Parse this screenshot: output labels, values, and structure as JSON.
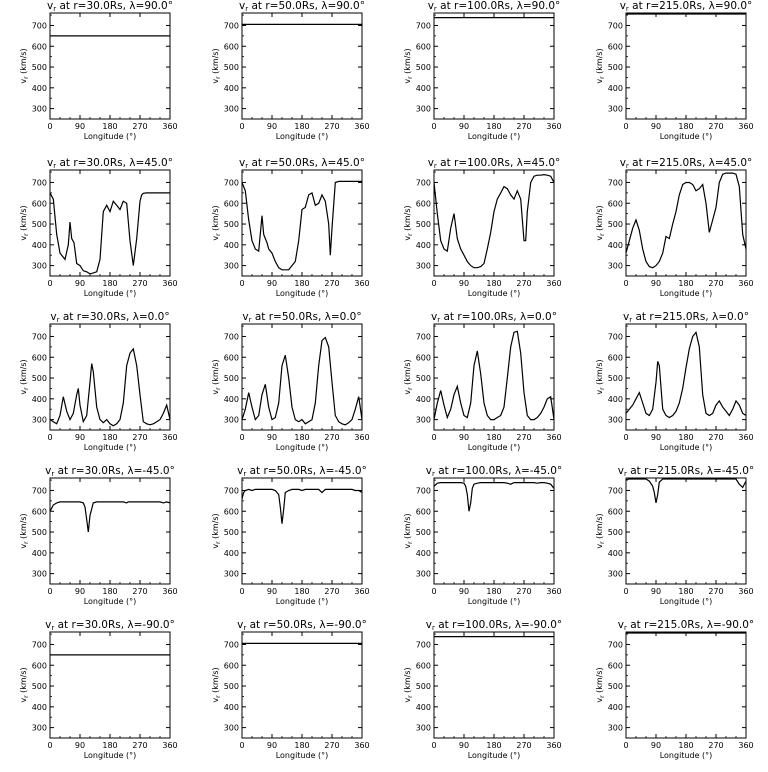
{
  "figure": {
    "xlabel": "Longitude (°)",
    "ylabel": "vr (km/s)",
    "xlim": [
      0,
      360
    ],
    "ylim": [
      250,
      760
    ],
    "xticks": [
      "0",
      "90",
      "180",
      "270",
      "360"
    ],
    "yticks": [
      "300",
      "400",
      "500",
      "600",
      "700"
    ]
  },
  "chart_data": [
    {
      "type": "line",
      "title": "vr at r=30.0Rs, λ=90.0°",
      "x": [
        0,
        360
      ],
      "series": [
        {
          "values": [
            650,
            650
          ]
        }
      ]
    },
    {
      "type": "line",
      "title": "vr at r=50.0Rs, λ=90.0°",
      "x": [
        0,
        360
      ],
      "series": [
        {
          "values": [
            705,
            705
          ]
        }
      ]
    },
    {
      "type": "line",
      "title": "vr at r=100.0Rs, λ=90.0°",
      "x": [
        0,
        360
      ],
      "series": [
        {
          "values": [
            738,
            738
          ]
        }
      ]
    },
    {
      "type": "line",
      "title": "vr at r=215.0Rs, λ=90.0°",
      "x": [
        0,
        360
      ],
      "series": [
        {
          "values": [
            755,
            755
          ]
        }
      ]
    },
    {
      "type": "line",
      "title": "vr at r=30.0Rs, λ=45.0°",
      "x": [
        0,
        10,
        20,
        30,
        45,
        55,
        60,
        65,
        72,
        80,
        90,
        100,
        110,
        120,
        130,
        140,
        150,
        160,
        170,
        180,
        190,
        200,
        210,
        220,
        230,
        240,
        250,
        260,
        270,
        275,
        280,
        290,
        300,
        310,
        320,
        330,
        340,
        350,
        360
      ],
      "series": [
        {
          "values": [
            650,
            620,
            450,
            360,
            330,
            400,
            510,
            430,
            410,
            310,
            300,
            275,
            270,
            260,
            265,
            270,
            330,
            560,
            590,
            560,
            610,
            590,
            570,
            610,
            600,
            420,
            300,
            430,
            610,
            640,
            648,
            650,
            650,
            650,
            650,
            650,
            650,
            650,
            650
          ]
        }
      ]
    },
    {
      "type": "line",
      "title": "vr at r=50.0Rs, λ=45.0°",
      "x": [
        0,
        10,
        20,
        30,
        40,
        50,
        60,
        65,
        70,
        75,
        80,
        90,
        100,
        110,
        120,
        130,
        140,
        150,
        160,
        170,
        180,
        190,
        200,
        210,
        220,
        230,
        240,
        250,
        260,
        265,
        270,
        280,
        290,
        300,
        310,
        320,
        330,
        340,
        350,
        360
      ],
      "series": [
        {
          "values": [
            700,
            660,
            520,
            420,
            380,
            370,
            540,
            450,
            430,
            410,
            380,
            360,
            320,
            290,
            280,
            280,
            280,
            300,
            320,
            420,
            570,
            580,
            640,
            650,
            590,
            600,
            640,
            610,
            500,
            350,
            480,
            700,
            705,
            705,
            705,
            705,
            705,
            705,
            705,
            705
          ]
        }
      ]
    },
    {
      "type": "line",
      "title": "vr at r=100.0Rs, λ=45.0°",
      "x": [
        0,
        10,
        20,
        30,
        40,
        50,
        60,
        70,
        80,
        90,
        100,
        110,
        120,
        130,
        140,
        150,
        160,
        170,
        180,
        190,
        200,
        210,
        220,
        230,
        240,
        250,
        260,
        270,
        275,
        280,
        290,
        300,
        310,
        320,
        330,
        340,
        350,
        360
      ],
      "series": [
        {
          "values": [
            700,
            550,
            420,
            380,
            370,
            480,
            550,
            430,
            380,
            350,
            320,
            300,
            290,
            290,
            295,
            310,
            380,
            460,
            560,
            620,
            650,
            680,
            670,
            640,
            620,
            660,
            620,
            420,
            420,
            560,
            700,
            730,
            735,
            735,
            738,
            735,
            730,
            700
          ]
        }
      ]
    },
    {
      "type": "line",
      "title": "vr at r=215.0Rs, λ=45.0°",
      "x": [
        0,
        10,
        20,
        30,
        40,
        50,
        60,
        70,
        80,
        90,
        100,
        110,
        120,
        130,
        140,
        150,
        160,
        170,
        180,
        190,
        200,
        210,
        220,
        230,
        240,
        250,
        260,
        270,
        280,
        290,
        300,
        310,
        320,
        330,
        340,
        350,
        360
      ],
      "series": [
        {
          "values": [
            360,
            420,
            480,
            520,
            470,
            380,
            320,
            295,
            290,
            300,
            320,
            360,
            440,
            430,
            500,
            560,
            640,
            690,
            700,
            700,
            690,
            660,
            670,
            690,
            600,
            460,
            520,
            580,
            700,
            740,
            745,
            745,
            745,
            740,
            680,
            450,
            380
          ]
        }
      ]
    },
    {
      "type": "line",
      "title": "vr at r=30.0Rs, λ=0.0°",
      "x": [
        0,
        10,
        20,
        30,
        40,
        50,
        60,
        70,
        80,
        85,
        90,
        100,
        110,
        120,
        125,
        130,
        140,
        150,
        160,
        170,
        180,
        190,
        200,
        210,
        220,
        230,
        240,
        250,
        260,
        270,
        280,
        290,
        300,
        310,
        320,
        330,
        340,
        350,
        360
      ],
      "series": [
        {
          "values": [
            300,
            290,
            280,
            320,
            410,
            340,
            300,
            330,
            420,
            450,
            370,
            290,
            320,
            480,
            570,
            530,
            360,
            300,
            285,
            300,
            280,
            270,
            280,
            300,
            380,
            560,
            620,
            640,
            560,
            420,
            290,
            280,
            275,
            280,
            290,
            300,
            330,
            370,
            300
          ]
        }
      ]
    },
    {
      "type": "line",
      "title": "vr at r=50.0Rs, λ=0.0°",
      "x": [
        0,
        10,
        20,
        30,
        40,
        50,
        60,
        70,
        80,
        90,
        100,
        110,
        120,
        130,
        140,
        150,
        160,
        170,
        180,
        190,
        200,
        210,
        220,
        230,
        240,
        250,
        260,
        270,
        280,
        290,
        300,
        310,
        320,
        330,
        340,
        350,
        360
      ],
      "series": [
        {
          "values": [
            300,
            350,
            430,
            360,
            300,
            320,
            420,
            470,
            360,
            300,
            310,
            380,
            560,
            610,
            500,
            360,
            300,
            290,
            300,
            280,
            290,
            300,
            380,
            560,
            680,
            695,
            650,
            480,
            320,
            290,
            280,
            275,
            285,
            300,
            350,
            410,
            300
          ]
        }
      ]
    },
    {
      "type": "line",
      "title": "vr at r=100.0Rs, λ=0.0°",
      "x": [
        0,
        10,
        20,
        30,
        40,
        50,
        60,
        70,
        80,
        90,
        100,
        110,
        120,
        130,
        140,
        150,
        160,
        170,
        180,
        190,
        200,
        210,
        220,
        230,
        240,
        250,
        260,
        270,
        280,
        290,
        300,
        310,
        320,
        330,
        340,
        350,
        360
      ],
      "series": [
        {
          "values": [
            300,
            380,
            440,
            370,
            310,
            350,
            420,
            460,
            380,
            320,
            310,
            380,
            560,
            630,
            520,
            380,
            320,
            300,
            300,
            310,
            320,
            360,
            500,
            650,
            720,
            725,
            620,
            430,
            320,
            300,
            300,
            310,
            330,
            360,
            400,
            410,
            300
          ]
        }
      ]
    },
    {
      "type": "line",
      "title": "vr at r=215.0Rs, λ=0.0°",
      "x": [
        0,
        10,
        20,
        30,
        40,
        50,
        60,
        70,
        80,
        90,
        95,
        100,
        110,
        120,
        130,
        140,
        150,
        160,
        170,
        180,
        190,
        200,
        210,
        220,
        230,
        240,
        250,
        260,
        270,
        280,
        290,
        300,
        310,
        320,
        330,
        340,
        350,
        360
      ],
      "series": [
        {
          "values": [
            330,
            350,
            370,
            400,
            430,
            380,
            330,
            320,
            350,
            480,
            580,
            560,
            350,
            320,
            310,
            320,
            340,
            380,
            450,
            550,
            640,
            700,
            720,
            650,
            420,
            330,
            320,
            330,
            370,
            390,
            360,
            340,
            320,
            350,
            390,
            370,
            330,
            320
          ]
        }
      ]
    },
    {
      "type": "line",
      "title": "vr at r=30.0Rs, λ=-45.0°",
      "x": [
        0,
        10,
        20,
        30,
        40,
        50,
        60,
        70,
        80,
        90,
        100,
        105,
        110,
        115,
        120,
        130,
        140,
        150,
        160,
        170,
        180,
        190,
        200,
        210,
        220,
        230,
        235,
        240,
        250,
        260,
        270,
        280,
        290,
        300,
        310,
        320,
        330,
        340,
        350,
        360
      ],
      "series": [
        {
          "values": [
            600,
            630,
            640,
            645,
            645,
            645,
            645,
            645,
            645,
            645,
            640,
            620,
            560,
            500,
            580,
            640,
            645,
            645,
            645,
            645,
            645,
            645,
            645,
            645,
            645,
            640,
            645,
            645,
            645,
            645,
            645,
            645,
            645,
            645,
            645,
            645,
            645,
            640,
            645,
            640
          ]
        }
      ]
    },
    {
      "type": "line",
      "title": "vr at r=50.0Rs, λ=-45.0°",
      "x": [
        0,
        5,
        10,
        20,
        30,
        40,
        50,
        60,
        70,
        80,
        90,
        100,
        110,
        115,
        120,
        125,
        130,
        140,
        150,
        160,
        170,
        180,
        190,
        200,
        210,
        220,
        230,
        240,
        250,
        260,
        270,
        280,
        290,
        300,
        310,
        320,
        330,
        340,
        350,
        360
      ],
      "series": [
        {
          "values": [
            660,
            690,
            700,
            705,
            700,
            705,
            705,
            705,
            705,
            705,
            705,
            700,
            680,
            620,
            540,
            610,
            690,
            700,
            705,
            705,
            705,
            700,
            705,
            705,
            705,
            705,
            705,
            690,
            705,
            705,
            705,
            705,
            705,
            705,
            705,
            705,
            705,
            700,
            700,
            690
          ]
        }
      ]
    },
    {
      "type": "line",
      "title": "vr at r=100.0Rs, λ=-45.0°",
      "x": [
        0,
        10,
        20,
        30,
        40,
        50,
        60,
        70,
        80,
        90,
        95,
        100,
        105,
        110,
        115,
        120,
        130,
        140,
        150,
        160,
        170,
        180,
        190,
        200,
        210,
        220,
        230,
        240,
        250,
        260,
        270,
        280,
        290,
        300,
        310,
        320,
        330,
        340,
        350,
        360
      ],
      "series": [
        {
          "values": [
            720,
            735,
            738,
            738,
            738,
            738,
            738,
            738,
            738,
            735,
            720,
            680,
            600,
            640,
            710,
            730,
            735,
            738,
            738,
            738,
            738,
            738,
            738,
            738,
            738,
            735,
            730,
            738,
            738,
            738,
            738,
            738,
            738,
            738,
            735,
            738,
            738,
            735,
            730,
            710
          ]
        }
      ]
    },
    {
      "type": "line",
      "title": "vr at r=215.0Rs, λ=-45.0°",
      "x": [
        0,
        10,
        20,
        30,
        40,
        50,
        60,
        70,
        80,
        85,
        90,
        95,
        100,
        110,
        120,
        130,
        140,
        150,
        160,
        170,
        180,
        190,
        200,
        210,
        220,
        230,
        240,
        250,
        260,
        270,
        280,
        290,
        300,
        310,
        320,
        330,
        340,
        350,
        360
      ],
      "series": [
        {
          "values": [
            752,
            755,
            755,
            755,
            755,
            755,
            755,
            745,
            720,
            690,
            640,
            680,
            740,
            755,
            755,
            755,
            755,
            755,
            755,
            755,
            755,
            755,
            755,
            755,
            755,
            755,
            755,
            755,
            755,
            755,
            755,
            755,
            755,
            755,
            755,
            755,
            730,
            715,
            745
          ]
        }
      ]
    },
    {
      "type": "line",
      "title": "vr at r=30.0Rs, λ=-90.0°",
      "x": [
        0,
        360
      ],
      "series": [
        {
          "values": [
            650,
            650
          ]
        }
      ]
    },
    {
      "type": "line",
      "title": "vr at r=50.0Rs, λ=-90.0°",
      "x": [
        0,
        360
      ],
      "series": [
        {
          "values": [
            705,
            705
          ]
        }
      ]
    },
    {
      "type": "line",
      "title": "vr at r=100.0Rs, λ=-90.0°",
      "x": [
        0,
        360
      ],
      "series": [
        {
          "values": [
            738,
            738
          ]
        }
      ]
    },
    {
      "type": "line",
      "title": "vr at r=215.0Rs, λ=-90.0°",
      "x": [
        0,
        360
      ],
      "series": [
        {
          "values": [
            755,
            755
          ]
        }
      ]
    }
  ]
}
